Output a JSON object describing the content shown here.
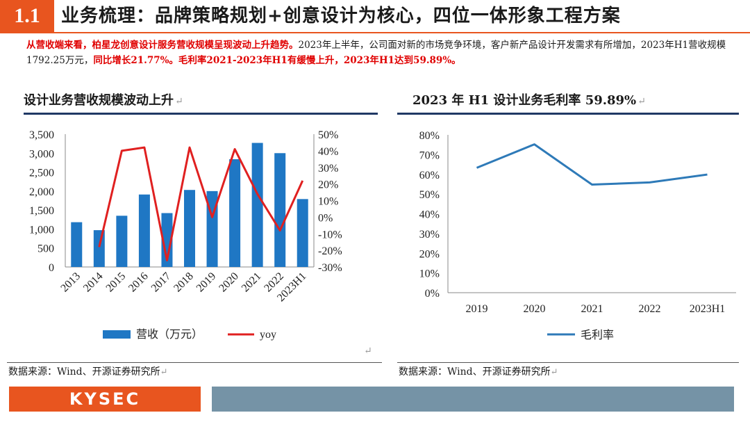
{
  "header": {
    "section_number": "1.1",
    "title": "业务梳理：品牌策略规划+创意设计为核心，四位一体形象工程方案"
  },
  "summary": {
    "part1": "从营收端来看，柏星龙创意设计服务营收规模呈现波动上升趋势。",
    "part2": "2023年上半年，公司面对新的市场竞争环境，客户新产品设计开发需求有所增加，2023年H1营收规模1792.25万元，",
    "part3": "同比增长21.77%。毛利率2021-2023年H1有缓慢上升，2023年H1达到59.89%。"
  },
  "left_panel": {
    "title": "设计业务营收规模波动上升",
    "return_mark": "↵",
    "source": "数据来源：Wind、开源证券研究所"
  },
  "right_panel": {
    "title": "2023 年 H1 设计业务毛利率 59.89%",
    "return_mark": "↵",
    "source": "数据来源：Wind、开源证券研究所"
  },
  "marks": {
    "ret": "↵"
  },
  "footer": {
    "brand": "KYSEC"
  },
  "colors": {
    "accent": "#e8551f",
    "bar": "#1f77c4",
    "yoy_line": "#e02020",
    "margin_line": "#2e7ab8",
    "navy": "#1f3864",
    "footer_bar": "#7593a6"
  },
  "chart_data": [
    {
      "type": "bar",
      "title": "设计业务营收规模波动上升",
      "categories": [
        "2013",
        "2014",
        "2015",
        "2016",
        "2017",
        "2018",
        "2019",
        "2020",
        "2021",
        "2022",
        "2023H1"
      ],
      "series": [
        {
          "name": "营收（万元）",
          "type": "bar",
          "axis": "left",
          "values": [
            1180,
            970,
            1350,
            1910,
            1420,
            2030,
            2000,
            2840,
            3270,
            3000,
            1790
          ]
        },
        {
          "name": "yoy",
          "type": "line",
          "axis": "right",
          "values": [
            null,
            -18,
            40,
            42,
            -26,
            42,
            0,
            41,
            14,
            -8,
            22
          ]
        }
      ],
      "y_left": {
        "min": 0,
        "max": 3500,
        "ticks": [
          "0",
          "500",
          "1,000",
          "1,500",
          "2,000",
          "2,500",
          "3,000",
          "3,500"
        ]
      },
      "y_right": {
        "min": -30,
        "max": 50,
        "ticks": [
          "-30%",
          "-20%",
          "-10%",
          "0%",
          "10%",
          "20%",
          "30%",
          "40%",
          "50%"
        ]
      },
      "legend": [
        "营收（万元）",
        "yoy"
      ],
      "legend_position": "bottom"
    },
    {
      "type": "line",
      "title": "2023 年 H1 设计业务毛利率 59.89%",
      "categories": [
        "2019",
        "2020",
        "2021",
        "2022",
        "2023H1"
      ],
      "series": [
        {
          "name": "毛利率",
          "values": [
            63.3,
            75.2,
            54.8,
            55.9,
            59.89
          ]
        }
      ],
      "y": {
        "min": 0,
        "max": 80,
        "ticks": [
          "0%",
          "10%",
          "20%",
          "30%",
          "40%",
          "50%",
          "60%",
          "70%",
          "80%"
        ]
      },
      "legend": [
        "毛利率"
      ],
      "legend_position": "bottom"
    }
  ]
}
